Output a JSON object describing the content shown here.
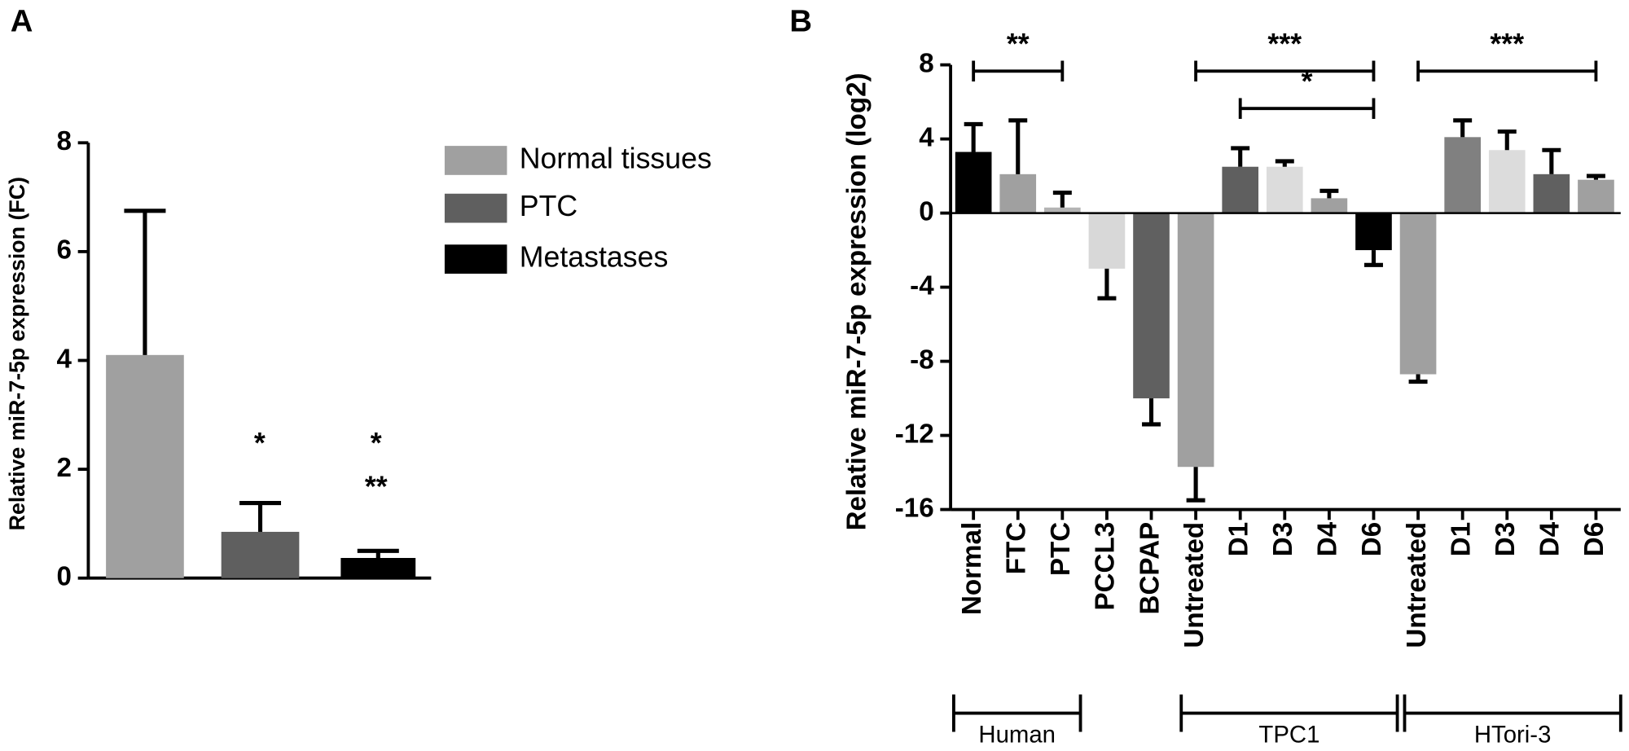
{
  "chart_data": [
    {
      "type": "bar",
      "panel": "A",
      "ylabel": "Relative miR-7-5p expression (FC)",
      "series": [
        {
          "name": "Normal tissues",
          "color": "#a0a0a0",
          "values": [
            4.1
          ],
          "errors": [
            2.65
          ]
        },
        {
          "name": "PTC",
          "color": "#5f5f5f",
          "values": [
            0.85
          ],
          "errors": [
            0.53
          ]
        },
        {
          "name": "Metastases",
          "color": "#000000",
          "values": [
            0.37
          ],
          "errors": [
            0.13
          ]
        }
      ],
      "annotations": [
        "*",
        "*",
        "**"
      ],
      "ylim": [
        0,
        8
      ],
      "yticks": [
        0,
        2,
        4,
        6,
        8
      ],
      "grid": false
    },
    {
      "type": "bar",
      "panel": "B",
      "ylabel": "Relative miR-7-5p expression (log2)",
      "categories": [
        "Normal",
        "FTC",
        "PTC",
        "PCCL3",
        "BCPAP",
        "Untreated",
        "D1",
        "D3",
        "D4",
        "D6",
        "Untreated",
        "D1",
        "D3",
        "D4",
        "D6"
      ],
      "values": [
        3.3,
        2.1,
        0.3,
        -3.0,
        -10.0,
        -13.7,
        2.5,
        2.5,
        0.8,
        -2.0,
        -8.7,
        4.1,
        3.4,
        2.1,
        1.8
      ],
      "errors": [
        1.5,
        2.9,
        0.8,
        1.6,
        1.4,
        1.8,
        1.0,
        0.3,
        0.4,
        0.8,
        0.4,
        0.9,
        1.0,
        1.3,
        0.2
      ],
      "colors": [
        "#000000",
        "#a0a0a0",
        "#b4b4b4",
        "#d8d8d8",
        "#606060",
        "#a0a0a0",
        "#5f5f5f",
        "#dcdcdc",
        "#a0a0a0",
        "#000000",
        "#a0a0a0",
        "#808080",
        "#dcdcdc",
        "#606060",
        "#a0a0a0"
      ],
      "comparisons": [
        "**",
        "***",
        "*",
        "***"
      ],
      "groups": [
        "Human",
        "TPC1",
        "HTori-3"
      ],
      "ylim": [
        -16,
        8
      ],
      "yticks": [
        -16,
        -12,
        -8,
        -4,
        0,
        4,
        8
      ],
      "grid": false
    }
  ]
}
